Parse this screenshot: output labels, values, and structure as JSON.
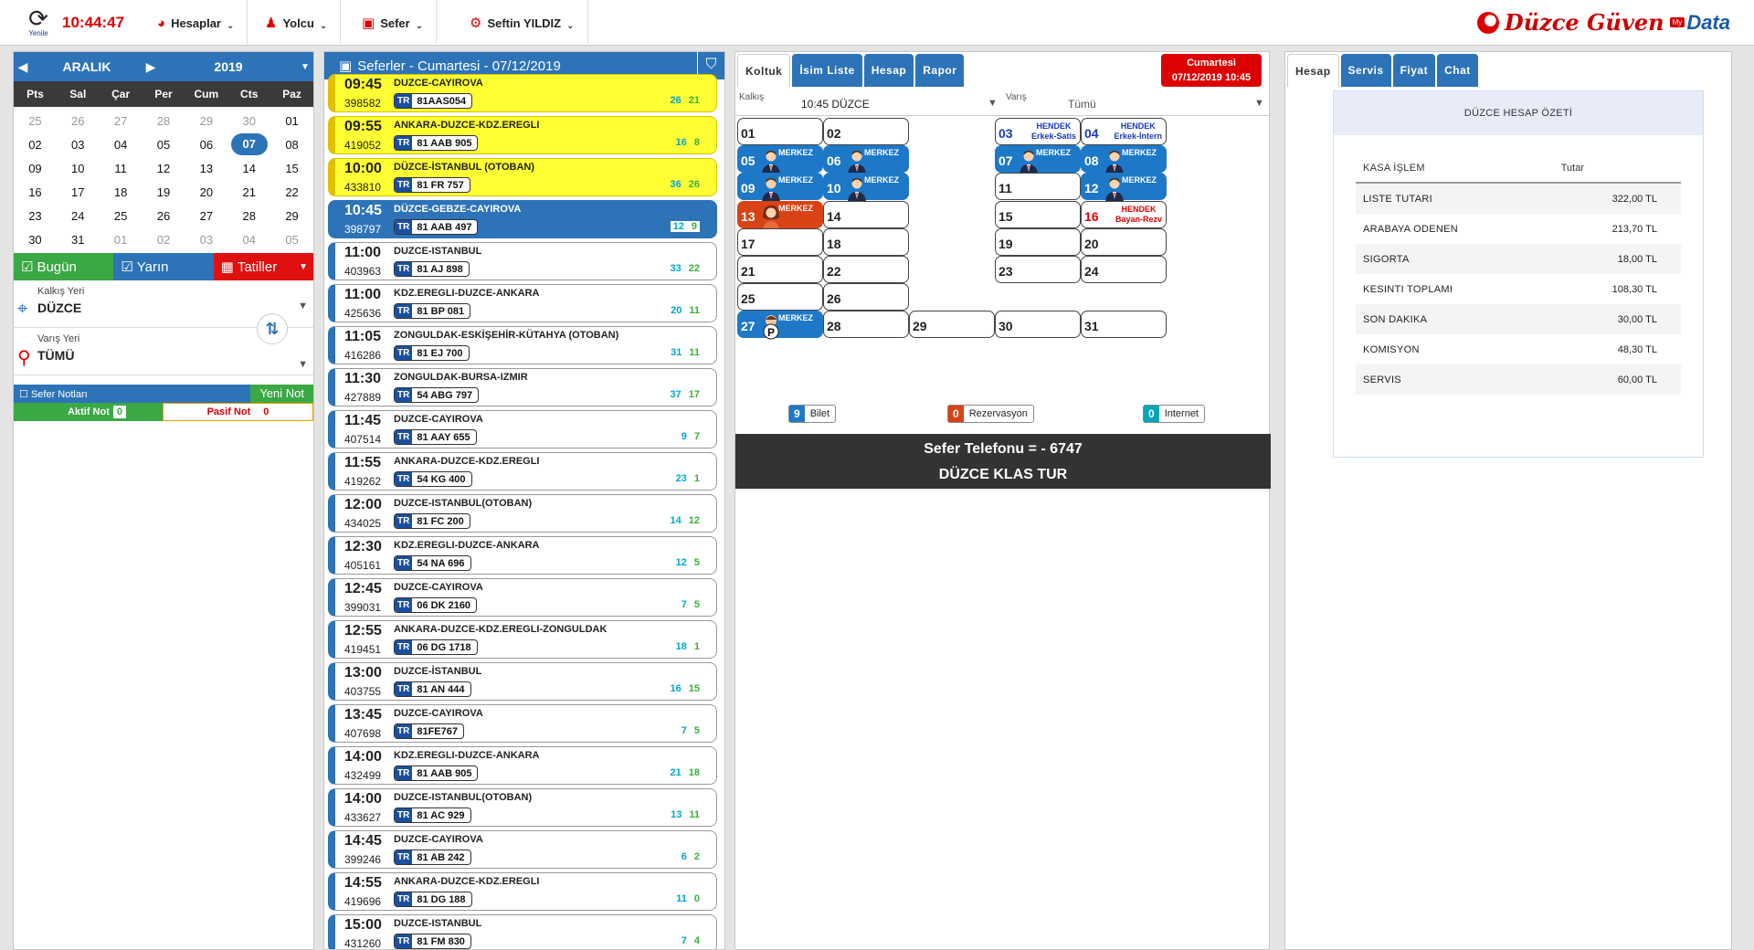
{
  "topbar": {
    "refresh_label": "Yenile",
    "clock": "10:44:47",
    "menu": [
      "Hesaplar",
      "Yolcu",
      "Sefer",
      "Seftin YILDIZ"
    ],
    "logo_main": "Düzce Güven",
    "logo_my": "My",
    "logo_data": "Data"
  },
  "calendar": {
    "month": "ARALIK",
    "year": "2019",
    "dow": [
      "Pts",
      "Sal",
      "Çar",
      "Per",
      "Cum",
      "Cts",
      "Paz"
    ],
    "weeks": [
      [
        "25",
        "26",
        "27",
        "28",
        "29",
        "30",
        "01"
      ],
      [
        "02",
        "03",
        "04",
        "05",
        "06",
        "07",
        "08"
      ],
      [
        "09",
        "10",
        "11",
        "12",
        "13",
        "14",
        "15"
      ],
      [
        "16",
        "17",
        "18",
        "19",
        "20",
        "21",
        "22"
      ],
      [
        "23",
        "24",
        "25",
        "26",
        "27",
        "28",
        "29"
      ],
      [
        "30",
        "31",
        "01",
        "02",
        "03",
        "04",
        "05"
      ]
    ],
    "selected": "07"
  },
  "quick": {
    "today": "Bugün",
    "tomorrow": "Yarın",
    "holidays": "Tatiller"
  },
  "origin": {
    "caption": "Kalkış Yeri",
    "value": "DÜZCE"
  },
  "dest": {
    "caption": "Varış Yeri",
    "value": "TÜMÜ"
  },
  "notes": {
    "title": "Sefer Notları",
    "new": "Yeni Not",
    "active_label": "Aktif Not",
    "active_count": "0",
    "passive_label": "Pasif Not",
    "passive_count": "0"
  },
  "trips_title": "Seferler - Cumartesi - 07/12/2019",
  "trips": [
    {
      "time": "09:45",
      "id": "398582",
      "route": "DUZCE-CAYIROVA",
      "plate": "81AAS054",
      "c1": "26",
      "c2": "21",
      "style": "y"
    },
    {
      "time": "09:55",
      "id": "419052",
      "route": "ANKARA-DUZCE-KDZ.EREGLI",
      "plate": "81 AAB 905",
      "c1": "16",
      "c2": "8",
      "style": "y"
    },
    {
      "time": "10:00",
      "id": "433810",
      "route": "DÜZCE-İSTANBUL (OTOBAN)",
      "plate": "81 FR 757",
      "c1": "36",
      "c2": "26",
      "style": "y"
    },
    {
      "time": "10:45",
      "id": "398797",
      "route": "DÜZCE-GEBZE-CAYIROVA",
      "plate": "81 AAB 497",
      "c1": "12",
      "c2": "9",
      "style": "sel"
    },
    {
      "time": "11:00",
      "id": "403963",
      "route": "DUZCE-ISTANBUL",
      "plate": "81 AJ 898",
      "c1": "33",
      "c2": "22",
      "style": ""
    },
    {
      "time": "11:00",
      "id": "425636",
      "route": "KDZ.EREGLI-DUZCE-ANKARA",
      "plate": "81 BP 081",
      "c1": "20",
      "c2": "11",
      "style": ""
    },
    {
      "time": "11:05",
      "id": "416286",
      "route": "ZONGULDAK-ESKİŞEHİR-KÜTAHYA (OTOBAN)",
      "plate": "81 EJ 700",
      "c1": "31",
      "c2": "11",
      "style": ""
    },
    {
      "time": "11:30",
      "id": "427889",
      "route": "ZONGULDAK-BURSA-IZMIR",
      "plate": "54 ABG 797",
      "c1": "37",
      "c2": "17",
      "style": ""
    },
    {
      "time": "11:45",
      "id": "407514",
      "route": "DUZCE-CAYIROVA",
      "plate": "81 AAY 655",
      "c1": "9",
      "c2": "7",
      "style": ""
    },
    {
      "time": "11:55",
      "id": "419262",
      "route": "ANKARA-DUZCE-KDZ.EREGLI",
      "plate": "54 KG 400",
      "c1": "23",
      "c2": "1",
      "style": ""
    },
    {
      "time": "12:00",
      "id": "434025",
      "route": "DUZCE-ISTANBUL(OTOBAN)",
      "plate": "81 FC 200",
      "c1": "14",
      "c2": "12",
      "style": ""
    },
    {
      "time": "12:30",
      "id": "405161",
      "route": "KDZ.EREGLI-DUZCE-ANKARA",
      "plate": "54 NA 696",
      "c1": "12",
      "c2": "5",
      "style": ""
    },
    {
      "time": "12:45",
      "id": "399031",
      "route": "DUZCE-CAYIROVA",
      "plate": "06 DK 2160",
      "c1": "7",
      "c2": "5",
      "style": ""
    },
    {
      "time": "12:55",
      "id": "419451",
      "route": "ANKARA-DUZCE-KDZ.EREGLI-ZONGULDAK",
      "plate": "06 DG 1718",
      "c1": "18",
      "c2": "1",
      "style": ""
    },
    {
      "time": "13:00",
      "id": "403755",
      "route": "DUZCE-İSTANBUL",
      "plate": "81 AN 444",
      "c1": "16",
      "c2": "15",
      "style": ""
    },
    {
      "time": "13:45",
      "id": "407698",
      "route": "DUZCE-CAYIROVA",
      "plate": "81FE767",
      "c1": "7",
      "c2": "5",
      "style": ""
    },
    {
      "time": "14:00",
      "id": "432499",
      "route": "KDZ.EREGLI-DUZCE-ANKARA",
      "plate": "81 AAB 905",
      "c1": "21",
      "c2": "18",
      "style": ""
    },
    {
      "time": "14:00",
      "id": "433627",
      "route": "DUZCE-ISTANBUL(OTOBAN)",
      "plate": "81 AC 929",
      "c1": "13",
      "c2": "11",
      "style": ""
    },
    {
      "time": "14:45",
      "id": "399246",
      "route": "DUZCE-CAYIROVA",
      "plate": "81 AB 242",
      "c1": "6",
      "c2": "2",
      "style": ""
    },
    {
      "time": "14:55",
      "id": "419696",
      "route": "ANKARA-DUZCE-KDZ.EREGLI",
      "plate": "81 DG 188",
      "c1": "11",
      "c2": "0",
      "style": ""
    },
    {
      "time": "15:00",
      "id": "431260",
      "route": "DUZCE-ISTANBUL",
      "plate": "81 FM 830",
      "c1": "7",
      "c2": "4",
      "style": ""
    }
  ],
  "seat_tabs": [
    "Koltuk",
    "İsim Liste",
    "Hesap",
    "Rapor"
  ],
  "trip_date": {
    "day": "Cumartesi",
    "datetime": "07/12/2019 10:45"
  },
  "filter": {
    "from_caption": "Kalkış",
    "from_value": "10:45 DÜZCE",
    "to_caption": "Varış",
    "to_value": "Tümü"
  },
  "seats": [
    {
      "n": "01",
      "col": 0,
      "row": 0
    },
    {
      "n": "02",
      "col": 1,
      "row": 0
    },
    {
      "n": "03",
      "col": 3,
      "row": 0,
      "status": "HENDEK",
      "sub": "Erkek-Satis",
      "num_color": "#1a3ab8"
    },
    {
      "n": "04",
      "col": 4,
      "row": 0,
      "status": "HENDEK",
      "sub": "Erkek-İntern",
      "num_color": "#1a3ab8"
    },
    {
      "n": "05",
      "col": 0,
      "row": 1,
      "kind": "b",
      "tag": "MERKEZ",
      "avatar": "m"
    },
    {
      "n": "06",
      "col": 1,
      "row": 1,
      "kind": "b",
      "tag": "MERKEZ",
      "avatar": "m"
    },
    {
      "n": "07",
      "col": 3,
      "row": 1,
      "kind": "b",
      "tag": "MERKEZ",
      "avatar": "m"
    },
    {
      "n": "08",
      "col": 4,
      "row": 1,
      "kind": "b",
      "tag": "MERKEZ",
      "avatar": "m"
    },
    {
      "n": "09",
      "col": 0,
      "row": 2,
      "kind": "b",
      "tag": "MERKEZ",
      "avatar": "m"
    },
    {
      "n": "10",
      "col": 1,
      "row": 2,
      "kind": "b",
      "tag": "MERKEZ",
      "avatar": "m"
    },
    {
      "n": "11",
      "col": 3,
      "row": 2
    },
    {
      "n": "12",
      "col": 4,
      "row": 2,
      "kind": "b",
      "tag": "MERKEZ",
      "avatar": "m"
    },
    {
      "n": "13",
      "col": 0,
      "row": 3,
      "kind": "r",
      "tag": "MERKEZ",
      "avatar": "f"
    },
    {
      "n": "14",
      "col": 1,
      "row": 3
    },
    {
      "n": "15",
      "col": 3,
      "row": 3
    },
    {
      "n": "16",
      "col": 4,
      "row": 3,
      "status": "HENDEK",
      "sub": "Bayan-Rezv",
      "num_color": "#d00",
      "status_color": "#d00"
    },
    {
      "n": "17",
      "col": 0,
      "row": 4
    },
    {
      "n": "18",
      "col": 1,
      "row": 4
    },
    {
      "n": "19",
      "col": 3,
      "row": 4
    },
    {
      "n": "20",
      "col": 4,
      "row": 4
    },
    {
      "n": "21",
      "col": 0,
      "row": 5
    },
    {
      "n": "22",
      "col": 1,
      "row": 5
    },
    {
      "n": "23",
      "col": 3,
      "row": 5
    },
    {
      "n": "24",
      "col": 4,
      "row": 5
    },
    {
      "n": "25",
      "col": 0,
      "row": 6
    },
    {
      "n": "26",
      "col": 1,
      "row": 6
    },
    {
      "n": "27",
      "col": 0,
      "row": 7,
      "kind": "b",
      "tag": "MERKEZ",
      "avatar": "p"
    },
    {
      "n": "28",
      "col": 1,
      "row": 7
    },
    {
      "n": "29",
      "col": 2,
      "row": 7
    },
    {
      "n": "30",
      "col": 3,
      "row": 7
    },
    {
      "n": "31",
      "col": 4,
      "row": 7
    }
  ],
  "legend": [
    {
      "count": "9",
      "label": "Bilet",
      "color": "#1e78c8"
    },
    {
      "count": "0",
      "label": "Rezervasyon",
      "color": "#d84315"
    },
    {
      "count": "0",
      "label": "Internet",
      "color": "#00a6b8"
    }
  ],
  "phone": {
    "line1": "Sefer Telefonu = - 6747",
    "line2": "DÜZCE KLAS TUR"
  },
  "acct_tabs": [
    "Hesap",
    "Servis",
    "Fiyat",
    "Chat"
  ],
  "summary": {
    "title": "DÜZCE HESAP ÖZETİ",
    "col1": "KASA İŞLEM",
    "col2": "Tutar",
    "rows": [
      {
        "l": "LISTE TUTARI",
        "v": "322,00 TL"
      },
      {
        "l": "ARABAYA ODENEN",
        "v": "213,70 TL"
      },
      {
        "l": "SIGORTA",
        "v": "18,00 TL"
      },
      {
        "l": "KESINTI TOPLAMI",
        "v": "108,30 TL"
      },
      {
        "l": "SON DAKIKA",
        "v": "30,00 TL"
      },
      {
        "l": "KOMISYON",
        "v": "48,30 TL"
      },
      {
        "l": "SERVIS",
        "v": "60,00 TL"
      }
    ]
  },
  "colors": {
    "primary": "#2d73b8",
    "danger": "#d00",
    "green": "#3aa845",
    "yellow": "#ffff33"
  }
}
